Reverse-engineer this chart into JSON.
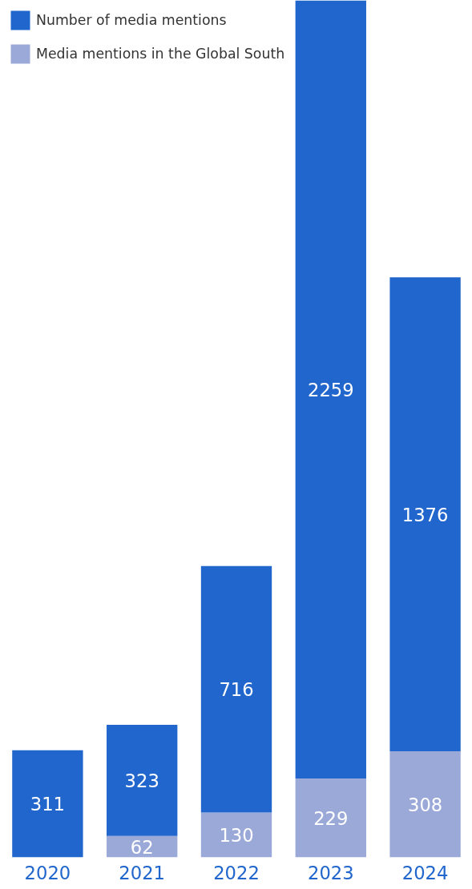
{
  "chart_data": {
    "type": "bar",
    "stacked": true,
    "data_labels": true,
    "legend": "top left",
    "grid": false,
    "categories": [
      "2020",
      "2021",
      "2022",
      "2023",
      "2024"
    ],
    "series": [
      {
        "name": "Media mentions in the Global South",
        "color": "#9ba9d8",
        "values": [
          null,
          62,
          130,
          229,
          308
        ]
      },
      {
        "name": "Number of media mentions",
        "color": "#2166cc",
        "values": [
          311,
          323,
          716,
          2259,
          1376
        ]
      }
    ]
  }
}
